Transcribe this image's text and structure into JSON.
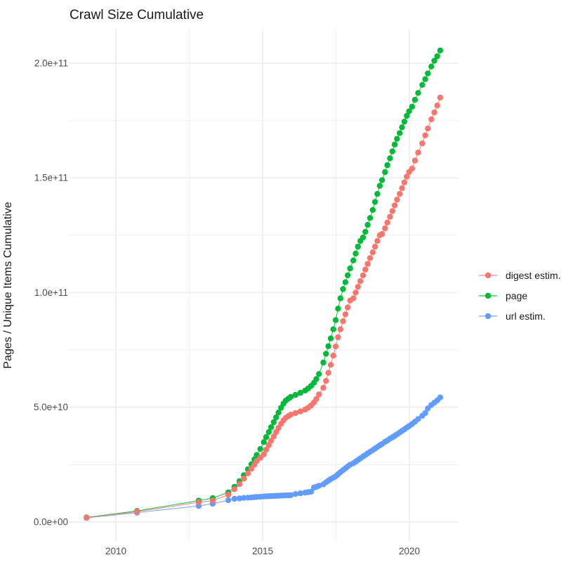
{
  "title": "Crawl Size Cumulative",
  "colors": {
    "digest_estim": "#F8766D",
    "page": "#00BA38",
    "url_estim": "#619CFF",
    "gridline": "#EBEBEB",
    "tick_text": "#4D4D4D",
    "label_text": "#1A1A1A",
    "background": "#FFFFFF"
  },
  "legend": {
    "items": [
      {
        "label": "digest estim.",
        "color": "#F8766D"
      },
      {
        "label": "page",
        "color": "#00BA38"
      },
      {
        "label": "url estim.",
        "color": "#619CFF"
      }
    ]
  },
  "axes": {
    "y_ticks": [
      {
        "value_e9": 0,
        "label": "0.0e+00"
      },
      {
        "value_e9": 50,
        "label": "5.0e+10"
      },
      {
        "value_e9": 100,
        "label": "1.0e+11"
      },
      {
        "value_e9": 150,
        "label": "1.5e+11"
      },
      {
        "value_e9": 200,
        "label": "2.0e+11"
      }
    ],
    "y_minor_e9": [
      25,
      75,
      125,
      175
    ],
    "x_ticks": [
      {
        "value": 2010,
        "label": "2010"
      },
      {
        "value": 2015,
        "label": "2015"
      },
      {
        "value": 2020,
        "label": "2020"
      }
    ],
    "x_minor": [
      2012.5,
      2017.5
    ]
  },
  "chart_data": {
    "type": "scatter",
    "title": "Crawl Size Cumulative",
    "xlabel": "",
    "ylabel": "Pages / Unique Items Cumulative",
    "legend_position": "right",
    "grid": true,
    "xlim": [
      2008.4,
      2021.65
    ],
    "ylim": [
      -8400000000.0,
      214000000000.0
    ],
    "x_tick_values": [
      2010,
      2015,
      2020
    ],
    "y_tick_values": [
      0,
      50000000000.0,
      100000000000.0,
      150000000000.0,
      200000000000.0
    ],
    "values_unit": "items, stored as multiples of 1e9",
    "x": [
      2009.0,
      2010.72,
      2012.82,
      2013.3,
      2013.83,
      2014.04,
      2014.21,
      2014.36,
      2014.5,
      2014.62,
      2014.72,
      2014.8,
      2014.92,
      2015.04,
      2015.12,
      2015.21,
      2015.29,
      2015.38,
      2015.46,
      2015.54,
      2015.63,
      2015.71,
      2015.79,
      2015.88,
      2015.96,
      2016.12,
      2016.29,
      2016.45,
      2016.55,
      2016.65,
      2016.75,
      2016.83,
      2016.92,
      2017.07,
      2017.16,
      2017.24,
      2017.32,
      2017.41,
      2017.49,
      2017.57,
      2017.65,
      2017.74,
      2017.82,
      2017.9,
      2017.98,
      2018.09,
      2018.17,
      2018.25,
      2018.33,
      2018.42,
      2018.5,
      2018.58,
      2018.66,
      2018.75,
      2018.83,
      2018.91,
      2018.99,
      2019.07,
      2019.17,
      2019.25,
      2019.34,
      2019.42,
      2019.5,
      2019.58,
      2019.67,
      2019.75,
      2019.83,
      2019.91,
      2019.99,
      2020.09,
      2020.19,
      2020.3,
      2020.44,
      2020.54,
      2020.63,
      2020.75,
      2020.85,
      2020.95,
      2021.05
    ],
    "series": [
      {
        "name": "digest estim.",
        "color": "#F8766D",
        "values_e9": [
          1.9,
          4.5,
          8.6,
          9.3,
          11.9,
          14.3,
          16.5,
          18.9,
          21.2,
          23.2,
          25.0,
          26.6,
          28.0,
          29.5,
          31.5,
          33.5,
          35.4,
          37.3,
          39.2,
          41.0,
          42.8,
          44.3,
          45.4,
          46.2,
          46.8,
          47.5,
          48.2,
          49.0,
          49.8,
          50.8,
          52.1,
          53.6,
          55.6,
          58.5,
          61.5,
          65.0,
          68.5,
          72.5,
          76.5,
          80.5,
          84.0,
          87.5,
          90.5,
          93.5,
          96.5,
          97.5,
          100.0,
          102.5,
          105.0,
          107.5,
          110.0,
          112.5,
          115.0,
          117.5,
          120.0,
          122.5,
          125.0,
          125.5,
          128.0,
          130.5,
          133.0,
          135.5,
          138.0,
          140.5,
          143.0,
          145.5,
          148.0,
          150.5,
          152.5,
          154.0,
          157.5,
          161.0,
          165.0,
          168.5,
          171.5,
          175.5,
          178.5,
          181.5,
          185.0
        ]
      },
      {
        "name": "page",
        "color": "#00BA38",
        "values_e9": [
          2.0,
          4.8,
          9.3,
          10.4,
          12.9,
          15.3,
          17.8,
          20.4,
          23.0,
          25.2,
          27.3,
          29.2,
          31.8,
          34.8,
          37.0,
          39.2,
          41.3,
          43.5,
          45.6,
          47.7,
          49.8,
          51.6,
          52.9,
          53.8,
          54.5,
          55.4,
          56.3,
          57.3,
          58.2,
          59.3,
          60.7,
          62.3,
          64.5,
          69.5,
          73.3,
          76.6,
          80.0,
          84.0,
          88.0,
          93.0,
          97.5,
          101.5,
          104.5,
          107.5,
          110.5,
          114.0,
          117.0,
          120.0,
          122.5,
          124.0,
          126.5,
          129.5,
          132.5,
          136.0,
          139.5,
          143.0,
          146.5,
          149.0,
          152.5,
          155.5,
          158.5,
          161.5,
          164.5,
          167.0,
          169.5,
          172.0,
          174.5,
          177.0,
          179.0,
          181.0,
          184.0,
          187.0,
          190.5,
          193.0,
          195.5,
          198.5,
          201.0,
          203.0,
          205.5
        ]
      },
      {
        "name": "url estim.",
        "color": "#619CFF",
        "values_e9": [
          1.8,
          4.1,
          7.0,
          8.0,
          9.5,
          10.1,
          10.3,
          10.5,
          10.6,
          10.7,
          10.8,
          10.9,
          11.0,
          11.1,
          11.2,
          11.25,
          11.3,
          11.35,
          11.4,
          11.45,
          11.5,
          11.55,
          11.6,
          11.65,
          11.7,
          12.2,
          12.5,
          12.8,
          13.0,
          13.2,
          15.0,
          15.3,
          15.8,
          16.4,
          17.3,
          18.0,
          18.7,
          19.3,
          19.9,
          20.8,
          21.7,
          22.6,
          23.4,
          24.2,
          25.0,
          25.6,
          26.3,
          27.0,
          27.7,
          28.5,
          29.2,
          29.9,
          30.6,
          31.3,
          32.0,
          32.7,
          33.4,
          34.0,
          34.9,
          35.5,
          36.3,
          36.9,
          37.5,
          38.2,
          39.0,
          39.7,
          40.4,
          41.1,
          41.8,
          42.7,
          43.7,
          44.9,
          46.3,
          47.5,
          49.5,
          51.0,
          52.0,
          53.0,
          54.3
        ]
      }
    ]
  }
}
